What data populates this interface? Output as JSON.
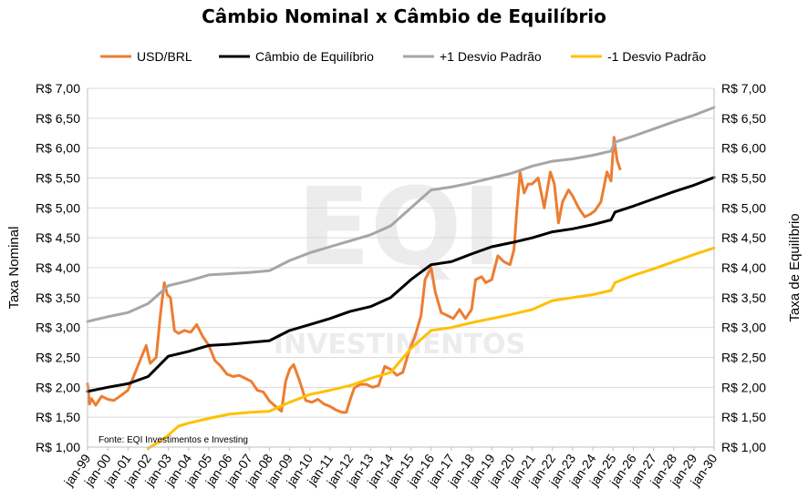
{
  "chart_data": {
    "type": "line",
    "title": "Câmbio Nominal x Câmbio de Equilíbrio",
    "ylabel": "Taxa Nominal",
    "ylabel_right": "Taxa de Equilíbrio",
    "source": "Fonte: EQI Investimentos e Investing",
    "watermark": {
      "main": "EQI",
      "sub": "INVESTIMENTOS"
    },
    "x_range": [
      1999,
      2030
    ],
    "x_tick_labels": [
      "jan-99",
      "jan-00",
      "jan-01",
      "jan-02",
      "jan-03",
      "jan-04",
      "jan-05",
      "jan-06",
      "jan-07",
      "jan-08",
      "jan-09",
      "jan-10",
      "jan-11",
      "jan-12",
      "jan-13",
      "jan-14",
      "jan-15",
      "jan-16",
      "jan-17",
      "jan-18",
      "jan-19",
      "jan-20",
      "jan-21",
      "jan-22",
      "jan-23",
      "jan-24",
      "jan-25",
      "jan-26",
      "jan-27",
      "jan-28",
      "jan-29",
      "jan-30"
    ],
    "ylim": [
      1.0,
      7.0
    ],
    "y_tick_labels": [
      "R$ 1,00",
      "R$ 1,50",
      "R$ 2,00",
      "R$ 2,50",
      "R$ 3,00",
      "R$ 3,50",
      "R$ 4,00",
      "R$ 4,50",
      "R$ 5,00",
      "R$ 5,50",
      "R$ 6,00",
      "R$ 6,50",
      "R$ 7,00"
    ],
    "y_tick_values": [
      1.0,
      1.5,
      2.0,
      2.5,
      3.0,
      3.5,
      4.0,
      4.5,
      5.0,
      5.5,
      6.0,
      6.5,
      7.0
    ],
    "grid": "horizontal",
    "legend_position": "top",
    "series": [
      {
        "name": "USD/BRL",
        "color": "#ED7D31",
        "x": [
          1999.0,
          1999.1,
          1999.2,
          1999.4,
          1999.7,
          2000.0,
          2000.3,
          2000.6,
          2001.0,
          2001.3,
          2001.6,
          2001.9,
          2002.1,
          2002.4,
          2002.6,
          2002.8,
          2002.95,
          2003.1,
          2003.3,
          2003.5,
          2003.8,
          2004.1,
          2004.4,
          2004.7,
          2005.0,
          2005.3,
          2005.6,
          2005.9,
          2006.2,
          2006.5,
          2006.8,
          2007.1,
          2007.4,
          2007.7,
          2008.0,
          2008.3,
          2008.6,
          2008.8,
          2009.0,
          2009.2,
          2009.5,
          2009.8,
          2010.1,
          2010.4,
          2010.7,
          2011.0,
          2011.3,
          2011.6,
          2011.8,
          2012.0,
          2012.2,
          2012.5,
          2012.8,
          2013.1,
          2013.4,
          2013.7,
          2014.0,
          2014.3,
          2014.6,
          2014.9,
          2015.2,
          2015.5,
          2015.7,
          2016.0,
          2016.2,
          2016.5,
          2016.8,
          2017.1,
          2017.4,
          2017.7,
          2018.0,
          2018.2,
          2018.5,
          2018.7,
          2019.0,
          2019.3,
          2019.6,
          2019.9,
          2020.1,
          2020.25,
          2020.4,
          2020.6,
          2020.8,
          2021.0,
          2021.3,
          2021.6,
          2021.9,
          2022.1,
          2022.3,
          2022.5,
          2022.8,
          2023.0,
          2023.3,
          2023.6,
          2023.9,
          2024.1,
          2024.4,
          2024.7,
          2024.9,
          2025.05,
          2025.2,
          2025.35
        ],
        "y": [
          2.06,
          1.72,
          1.81,
          1.7,
          1.85,
          1.8,
          1.78,
          1.85,
          1.95,
          2.2,
          2.45,
          2.7,
          2.4,
          2.5,
          3.2,
          3.75,
          3.55,
          3.5,
          2.95,
          2.9,
          2.95,
          2.92,
          3.05,
          2.85,
          2.7,
          2.45,
          2.35,
          2.22,
          2.18,
          2.2,
          2.15,
          2.1,
          1.95,
          1.92,
          1.77,
          1.68,
          1.6,
          2.1,
          2.3,
          2.38,
          2.1,
          1.78,
          1.75,
          1.8,
          1.72,
          1.68,
          1.62,
          1.58,
          1.58,
          1.8,
          1.99,
          2.05,
          2.05,
          2.0,
          2.03,
          2.35,
          2.3,
          2.2,
          2.25,
          2.6,
          2.85,
          3.2,
          3.8,
          4.0,
          3.6,
          3.25,
          3.2,
          3.15,
          3.3,
          3.15,
          3.3,
          3.8,
          3.85,
          3.75,
          3.8,
          4.2,
          4.1,
          4.05,
          4.3,
          5.0,
          5.6,
          5.25,
          5.4,
          5.4,
          5.5,
          5.0,
          5.6,
          5.4,
          4.75,
          5.1,
          5.3,
          5.2,
          5.0,
          4.85,
          4.9,
          4.95,
          5.1,
          5.6,
          5.45,
          6.18,
          5.8,
          5.65
        ]
      },
      {
        "name": "Câmbio de Equilíbrio",
        "color": "#000000",
        "x": [
          1999.0,
          2000.0,
          2001.0,
          2002.0,
          2003.0,
          2004.0,
          2005.0,
          2006.0,
          2007.0,
          2008.0,
          2009.0,
          2010.0,
          2011.0,
          2012.0,
          2013.0,
          2014.0,
          2015.0,
          2016.0,
          2017.0,
          2018.0,
          2019.0,
          2020.0,
          2021.0,
          2022.0,
          2023.0,
          2024.0,
          2024.9,
          2025.1,
          2026.0,
          2027.0,
          2028.0,
          2029.0,
          2030.0
        ],
        "y": [
          1.93,
          2.0,
          2.06,
          2.18,
          2.52,
          2.6,
          2.7,
          2.72,
          2.75,
          2.78,
          2.95,
          3.05,
          3.15,
          3.27,
          3.35,
          3.5,
          3.8,
          4.05,
          4.1,
          4.23,
          4.35,
          4.42,
          4.5,
          4.6,
          4.65,
          4.72,
          4.8,
          4.93,
          5.03,
          5.15,
          5.27,
          5.38,
          5.51
        ]
      },
      {
        "name": "+1 Desvio Padrão",
        "color": "#A6A6A6",
        "x": [
          1999.0,
          2000.0,
          2001.0,
          2002.0,
          2003.0,
          2004.0,
          2005.0,
          2006.0,
          2007.0,
          2008.0,
          2009.0,
          2010.0,
          2011.0,
          2012.0,
          2013.0,
          2014.0,
          2015.0,
          2016.0,
          2017.0,
          2018.0,
          2019.0,
          2020.0,
          2021.0,
          2022.0,
          2023.0,
          2024.0,
          2024.9,
          2025.1,
          2026.0,
          2027.0,
          2028.0,
          2029.0,
          2030.0
        ],
        "y": [
          3.1,
          3.18,
          3.25,
          3.4,
          3.7,
          3.78,
          3.88,
          3.9,
          3.92,
          3.95,
          4.12,
          4.25,
          4.35,
          4.45,
          4.55,
          4.7,
          5.0,
          5.3,
          5.35,
          5.42,
          5.5,
          5.58,
          5.7,
          5.78,
          5.82,
          5.88,
          5.95,
          6.1,
          6.2,
          6.32,
          6.44,
          6.55,
          6.68
        ]
      },
      {
        "name": "-1 Desvio Padrão",
        "color": "#FFC000",
        "x": [
          2002.0,
          2002.6,
          2003.0,
          2003.5,
          2004.0,
          2005.0,
          2006.0,
          2007.0,
          2008.0,
          2009.0,
          2010.0,
          2011.0,
          2012.0,
          2013.0,
          2014.0,
          2015.0,
          2016.0,
          2017.0,
          2018.0,
          2019.0,
          2020.0,
          2021.0,
          2022.0,
          2023.0,
          2024.0,
          2024.9,
          2025.1,
          2026.0,
          2027.0,
          2028.0,
          2029.0,
          2030.0
        ],
        "y": [
          0.98,
          1.1,
          1.2,
          1.35,
          1.4,
          1.48,
          1.55,
          1.58,
          1.6,
          1.75,
          1.88,
          1.95,
          2.03,
          2.15,
          2.25,
          2.65,
          2.95,
          3.0,
          3.08,
          3.15,
          3.22,
          3.3,
          3.45,
          3.5,
          3.55,
          3.62,
          3.75,
          3.87,
          3.98,
          4.1,
          4.22,
          4.33
        ]
      }
    ]
  }
}
